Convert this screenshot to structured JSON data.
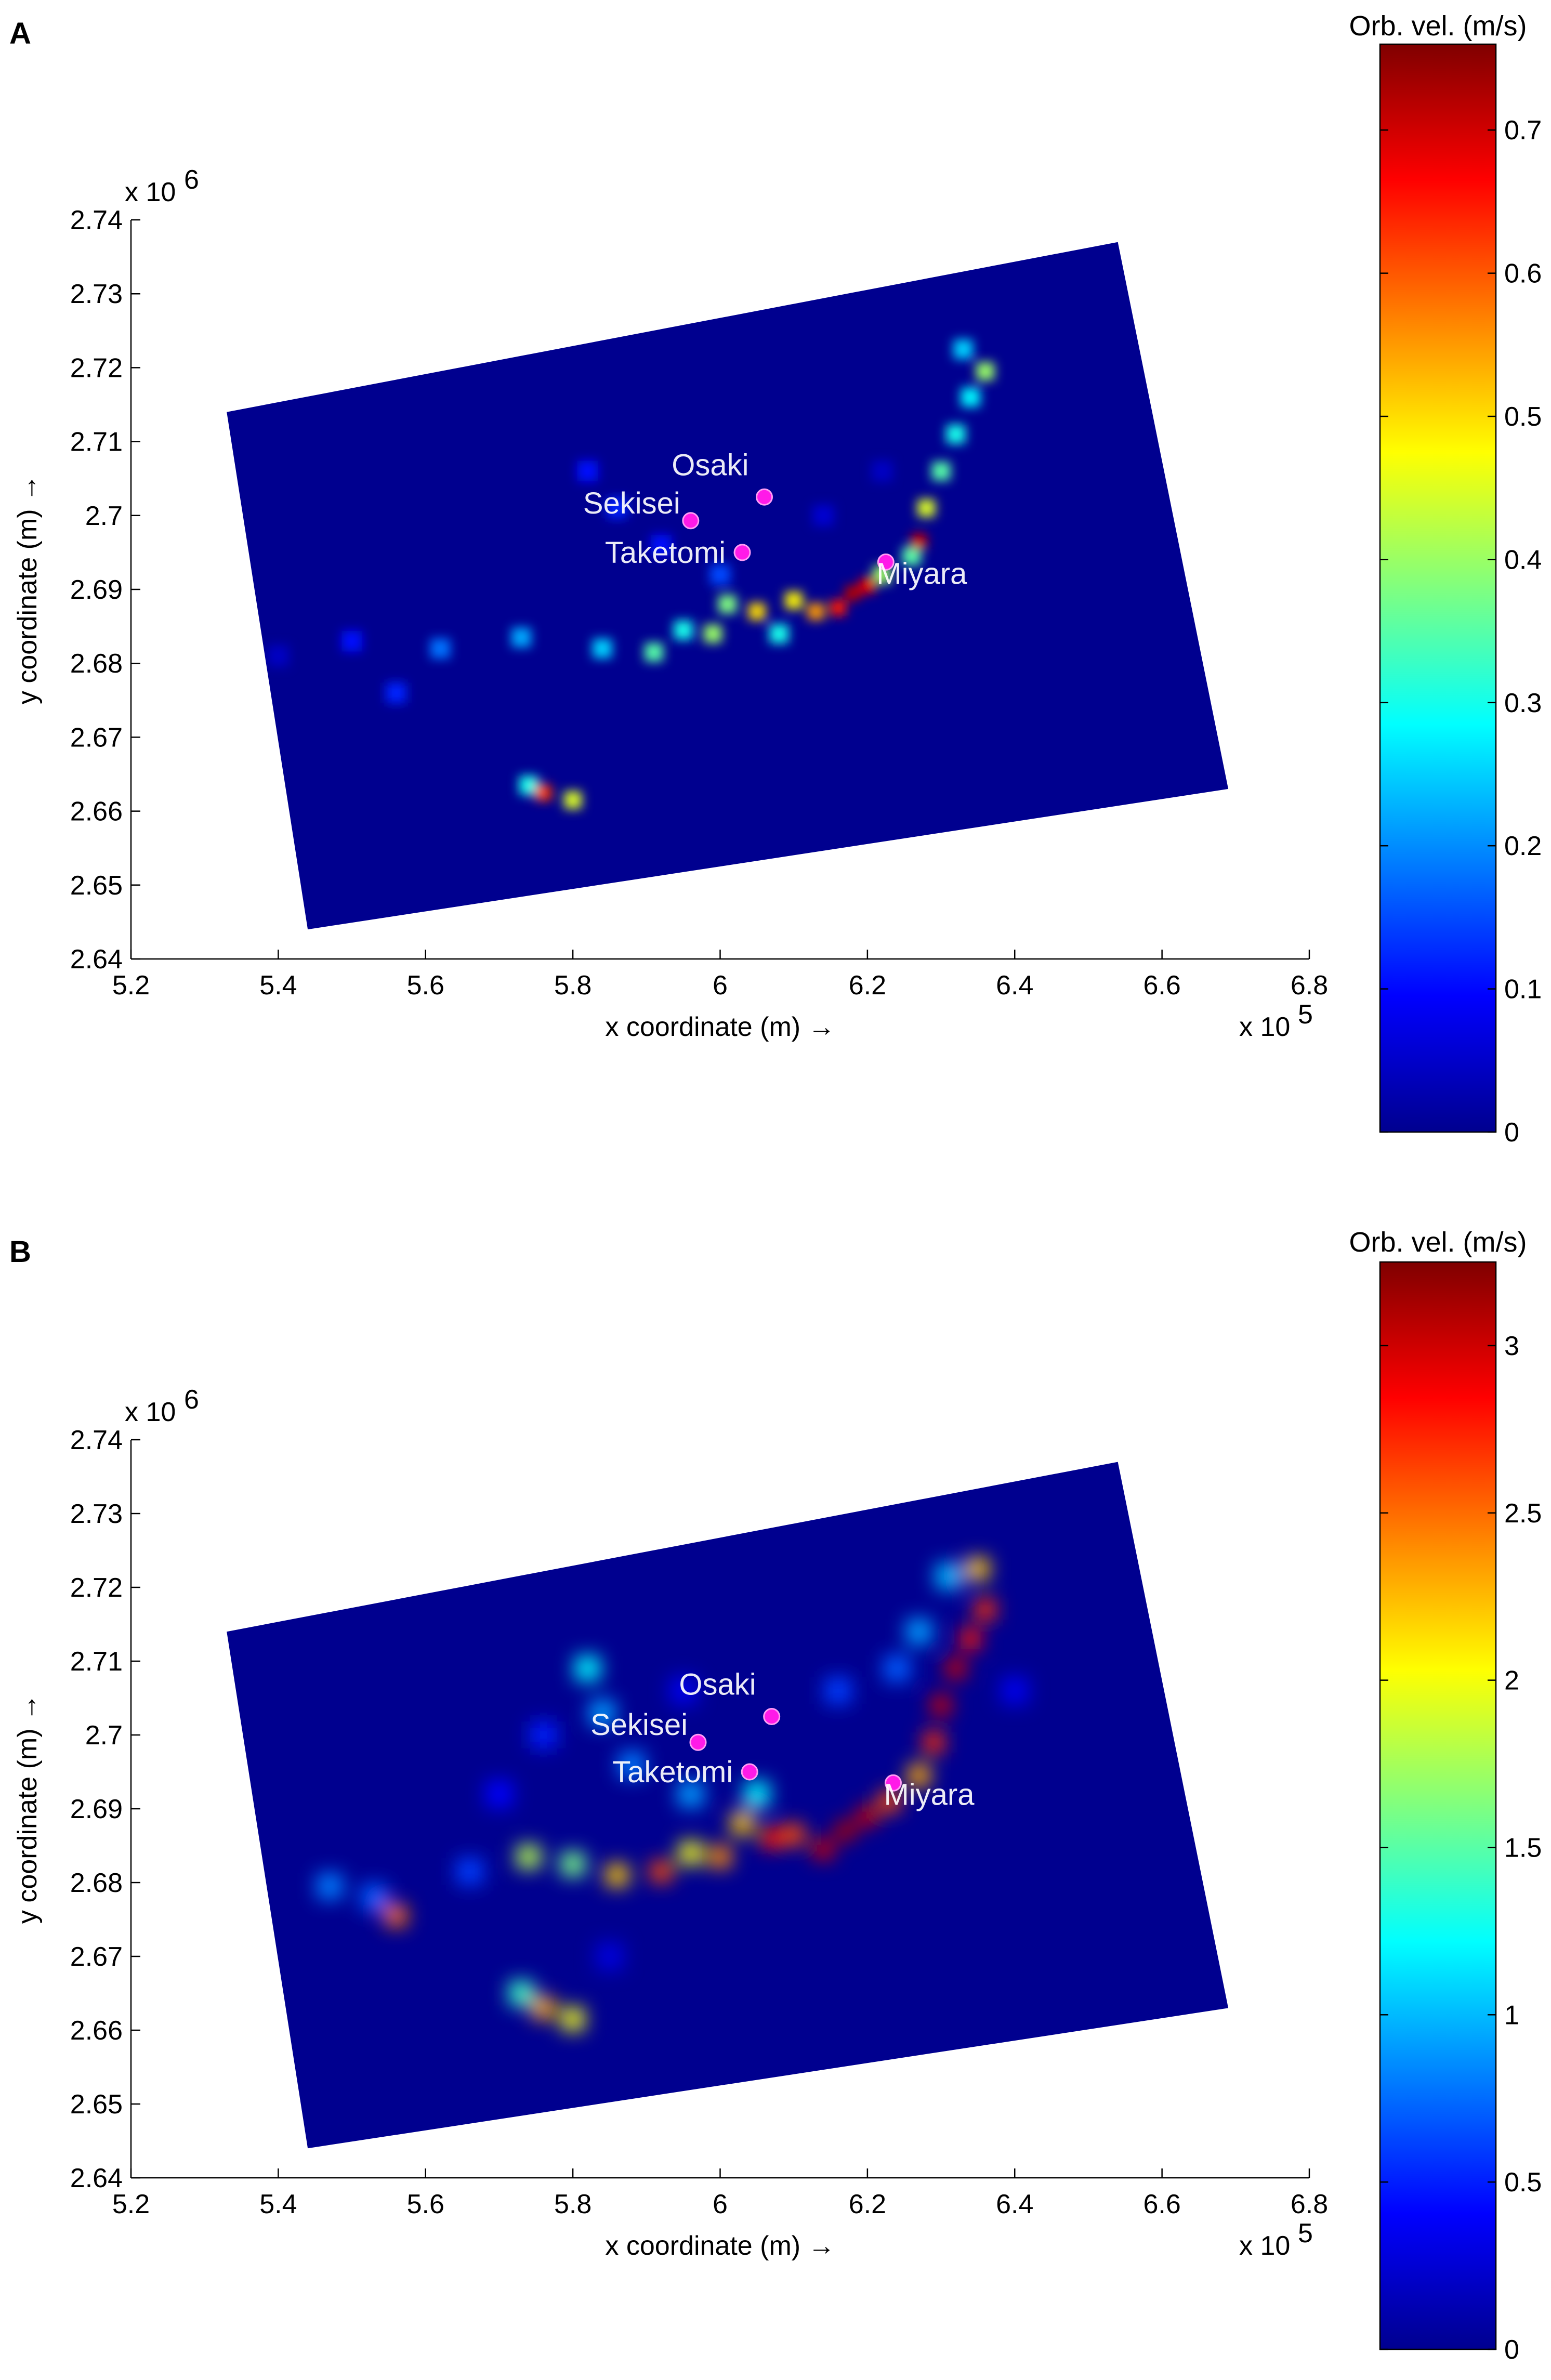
{
  "chart_data": [
    {
      "type": "heatmap",
      "panel": "A",
      "xlabel": "x coordinate (m) →",
      "ylabel": "y coordinate (m) →",
      "x_multiplier": "x 10",
      "x_exponent": "5",
      "y_multiplier": "x 10",
      "y_exponent": "6",
      "xlim": [
        5.2,
        6.8
      ],
      "ylim": [
        2.64,
        2.74
      ],
      "x_ticks": [
        "5.2",
        "5.4",
        "5.6",
        "5.8",
        "6",
        "6.2",
        "6.4",
        "6.6",
        "6.8"
      ],
      "y_ticks": [
        "2.64",
        "2.65",
        "2.66",
        "2.67",
        "2.68",
        "2.69",
        "2.7",
        "2.71",
        "2.72",
        "2.73",
        "2.74"
      ],
      "grid": false,
      "colorbar": {
        "title": "Orb. vel. (m/s)",
        "colormap": "jet",
        "range": [
          0,
          0.76
        ],
        "ticks": [
          "0",
          "0.1",
          "0.2",
          "0.3",
          "0.4",
          "0.5",
          "0.6",
          "0.7"
        ]
      },
      "domain_corners": [
        [
          5.33,
          2.714
        ],
        [
          6.54,
          2.737
        ],
        [
          6.69,
          2.663
        ],
        [
          5.44,
          2.644
        ]
      ],
      "sites": [
        {
          "name": "Osaki",
          "x": 6.06,
          "y": 2.7025
        },
        {
          "name": "Sekisei",
          "x": 5.96,
          "y": 2.6993
        },
        {
          "name": "Taketomi",
          "x": 6.03,
          "y": 2.695
        },
        {
          "name": "Miyara",
          "x": 6.225,
          "y": 2.6937
        }
      ],
      "hotspots": [
        {
          "x": 5.76,
          "y": 2.6625,
          "value": 0.62
        },
        {
          "x": 5.8,
          "y": 2.6615,
          "value": 0.45
        },
        {
          "x": 5.74,
          "y": 2.6635,
          "value": 0.3
        },
        {
          "x": 5.56,
          "y": 2.676,
          "value": 0.12
        },
        {
          "x": 5.4,
          "y": 2.681,
          "value": 0.05
        },
        {
          "x": 5.5,
          "y": 2.683,
          "value": 0.1
        },
        {
          "x": 5.62,
          "y": 2.682,
          "value": 0.18
        },
        {
          "x": 5.73,
          "y": 2.6835,
          "value": 0.22
        },
        {
          "x": 5.84,
          "y": 2.682,
          "value": 0.25
        },
        {
          "x": 5.91,
          "y": 2.6815,
          "value": 0.35
        },
        {
          "x": 5.95,
          "y": 2.6845,
          "value": 0.3
        },
        {
          "x": 5.99,
          "y": 2.684,
          "value": 0.4
        },
        {
          "x": 6.01,
          "y": 2.688,
          "value": 0.38
        },
        {
          "x": 6.05,
          "y": 2.687,
          "value": 0.5
        },
        {
          "x": 6.08,
          "y": 2.684,
          "value": 0.3
        },
        {
          "x": 6.1,
          "y": 2.6885,
          "value": 0.48
        },
        {
          "x": 6.13,
          "y": 2.687,
          "value": 0.55
        },
        {
          "x": 6.16,
          "y": 2.6875,
          "value": 0.65
        },
        {
          "x": 6.18,
          "y": 2.6895,
          "value": 0.72
        },
        {
          "x": 6.2,
          "y": 2.6905,
          "value": 0.68
        },
        {
          "x": 6.22,
          "y": 2.692,
          "value": 0.4
        },
        {
          "x": 6.26,
          "y": 2.6945,
          "value": 0.35
        },
        {
          "x": 6.27,
          "y": 2.6965,
          "value": 0.7
        },
        {
          "x": 6.28,
          "y": 2.701,
          "value": 0.45
        },
        {
          "x": 6.3,
          "y": 2.706,
          "value": 0.35
        },
        {
          "x": 6.32,
          "y": 2.711,
          "value": 0.3
        },
        {
          "x": 6.34,
          "y": 2.716,
          "value": 0.28
        },
        {
          "x": 6.36,
          "y": 2.7195,
          "value": 0.4
        },
        {
          "x": 6.33,
          "y": 2.7225,
          "value": 0.25
        },
        {
          "x": 6.0,
          "y": 2.692,
          "value": 0.15
        },
        {
          "x": 5.92,
          "y": 2.696,
          "value": 0.1
        },
        {
          "x": 5.82,
          "y": 2.706,
          "value": 0.1
        },
        {
          "x": 5.86,
          "y": 2.701,
          "value": 0.12
        },
        {
          "x": 6.14,
          "y": 2.7,
          "value": 0.06
        },
        {
          "x": 6.22,
          "y": 2.706,
          "value": 0.05
        }
      ]
    },
    {
      "type": "heatmap",
      "panel": "B",
      "xlabel": "x coordinate (m) →",
      "ylabel": "y coordinate (m) →",
      "x_multiplier": "x 10",
      "x_exponent": "5",
      "y_multiplier": "x 10",
      "y_exponent": "6",
      "xlim": [
        5.2,
        6.8
      ],
      "ylim": [
        2.64,
        2.74
      ],
      "x_ticks": [
        "5.2",
        "5.4",
        "5.6",
        "5.8",
        "6",
        "6.2",
        "6.4",
        "6.6",
        "6.8"
      ],
      "y_ticks": [
        "2.64",
        "2.65",
        "2.66",
        "2.67",
        "2.68",
        "2.69",
        "2.7",
        "2.71",
        "2.72",
        "2.73",
        "2.74"
      ],
      "grid": false,
      "colorbar": {
        "title": "Orb. vel. (m/s)",
        "colormap": "jet",
        "range": [
          0,
          3.25
        ],
        "ticks": [
          "0",
          "0.5",
          "1",
          "1.5",
          "2",
          "2.5",
          "3"
        ]
      },
      "domain_corners": [
        [
          5.33,
          2.714
        ],
        [
          6.54,
          2.737
        ],
        [
          6.69,
          2.663
        ],
        [
          5.44,
          2.644
        ]
      ],
      "sites": [
        {
          "name": "Osaki",
          "x": 6.07,
          "y": 2.7025
        },
        {
          "name": "Sekisei",
          "x": 5.97,
          "y": 2.699
        },
        {
          "name": "Taketomi",
          "x": 6.04,
          "y": 2.695
        },
        {
          "name": "Miyara",
          "x": 6.235,
          "y": 2.6935
        }
      ],
      "hotspots": [
        {
          "x": 5.76,
          "y": 2.663,
          "value": 2.3
        },
        {
          "x": 5.8,
          "y": 2.6615,
          "value": 2.0
        },
        {
          "x": 5.73,
          "y": 2.665,
          "value": 1.4
        },
        {
          "x": 5.56,
          "y": 2.6755,
          "value": 2.5
        },
        {
          "x": 5.47,
          "y": 2.6795,
          "value": 0.8
        },
        {
          "x": 5.53,
          "y": 2.678,
          "value": 0.7
        },
        {
          "x": 5.66,
          "y": 2.6815,
          "value": 0.6
        },
        {
          "x": 5.74,
          "y": 2.6835,
          "value": 1.8
        },
        {
          "x": 5.8,
          "y": 2.6825,
          "value": 1.6
        },
        {
          "x": 5.86,
          "y": 2.681,
          "value": 2.2
        },
        {
          "x": 5.92,
          "y": 2.6815,
          "value": 2.6
        },
        {
          "x": 5.96,
          "y": 2.684,
          "value": 2.0
        },
        {
          "x": 6.0,
          "y": 2.6835,
          "value": 2.4
        },
        {
          "x": 6.03,
          "y": 2.688,
          "value": 2.2
        },
        {
          "x": 6.07,
          "y": 2.686,
          "value": 2.8
        },
        {
          "x": 6.1,
          "y": 2.6865,
          "value": 2.6
        },
        {
          "x": 6.14,
          "y": 2.6845,
          "value": 3.0
        },
        {
          "x": 6.17,
          "y": 2.687,
          "value": 3.1
        },
        {
          "x": 6.2,
          "y": 2.689,
          "value": 3.0
        },
        {
          "x": 6.23,
          "y": 2.691,
          "value": 2.6
        },
        {
          "x": 6.27,
          "y": 2.6945,
          "value": 2.3
        },
        {
          "x": 6.29,
          "y": 2.699,
          "value": 2.7
        },
        {
          "x": 6.3,
          "y": 2.704,
          "value": 3.0
        },
        {
          "x": 6.32,
          "y": 2.709,
          "value": 3.0
        },
        {
          "x": 6.34,
          "y": 2.713,
          "value": 2.8
        },
        {
          "x": 6.36,
          "y": 2.717,
          "value": 2.7
        },
        {
          "x": 6.35,
          "y": 2.7225,
          "value": 2.2
        },
        {
          "x": 6.31,
          "y": 2.7215,
          "value": 1.0
        },
        {
          "x": 6.27,
          "y": 2.714,
          "value": 0.9
        },
        {
          "x": 6.24,
          "y": 2.709,
          "value": 0.7
        },
        {
          "x": 6.16,
          "y": 2.706,
          "value": 0.6
        },
        {
          "x": 6.05,
          "y": 2.692,
          "value": 1.2
        },
        {
          "x": 5.96,
          "y": 2.692,
          "value": 0.9
        },
        {
          "x": 5.88,
          "y": 2.696,
          "value": 0.8
        },
        {
          "x": 5.84,
          "y": 2.703,
          "value": 0.9
        },
        {
          "x": 5.82,
          "y": 2.709,
          "value": 1.2
        },
        {
          "x": 5.76,
          "y": 2.7,
          "value": 0.5
        },
        {
          "x": 5.7,
          "y": 2.692,
          "value": 0.4
        },
        {
          "x": 5.95,
          "y": 2.706,
          "value": 0.35
        },
        {
          "x": 6.4,
          "y": 2.706,
          "value": 0.35
        },
        {
          "x": 5.85,
          "y": 2.67,
          "value": 0.3
        }
      ]
    }
  ]
}
